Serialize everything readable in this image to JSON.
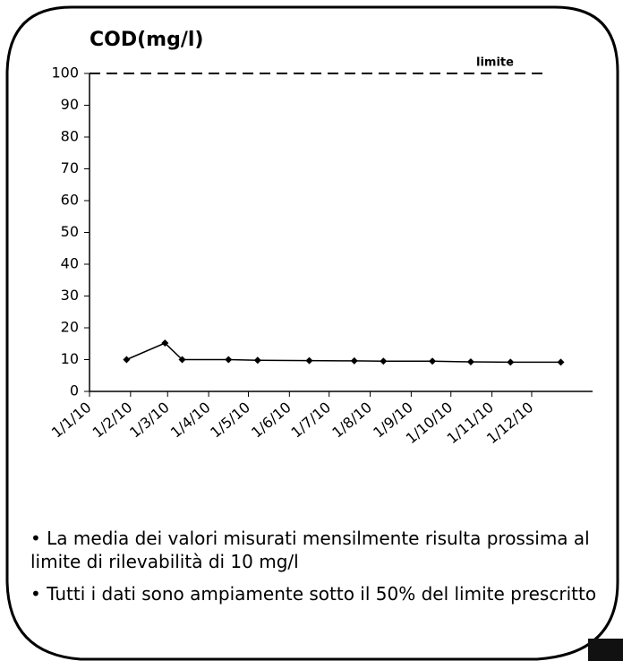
{
  "chart_data": {
    "type": "line",
    "title": "COD(mg/l)",
    "x": [
      29,
      58,
      71,
      106,
      128,
      167,
      201,
      223,
      260,
      289,
      319,
      357
    ],
    "series": [
      {
        "name": "COD",
        "color": "#000000",
        "values": [
          10,
          15.2,
          10,
          10,
          9.8,
          9.7,
          9.6,
          9.5,
          9.5,
          9.3,
          9.2,
          9.2
        ]
      }
    ],
    "xlim": [
      1,
      381
    ],
    "xticks": [
      {
        "value": 1,
        "label": "1/1/10"
      },
      {
        "value": 32,
        "label": "1/2/10"
      },
      {
        "value": 60,
        "label": "1/3/10"
      },
      {
        "value": 91,
        "label": "1/4/10"
      },
      {
        "value": 121,
        "label": "1/5/10"
      },
      {
        "value": 152,
        "label": "1/6/10"
      },
      {
        "value": 182,
        "label": "1/7/10"
      },
      {
        "value": 213,
        "label": "1/8/10"
      },
      {
        "value": 244,
        "label": "1/9/10"
      },
      {
        "value": 274,
        "label": "1/10/10"
      },
      {
        "value": 305,
        "label": "1/11/10"
      },
      {
        "value": 335,
        "label": "1/12/10"
      }
    ],
    "ylim": [
      0,
      100
    ],
    "yticks": [
      0,
      10,
      20,
      30,
      40,
      50,
      60,
      70,
      80,
      90,
      100
    ],
    "limit": {
      "value": 100,
      "label": "limite"
    },
    "notes": [
      "• La media dei valori misurati mensilmente risulta prossima al limite di rilevabilità di 10 mg/l",
      "• Tutti i dati sono ampiamente sotto il 50% del limite prescritto"
    ]
  }
}
